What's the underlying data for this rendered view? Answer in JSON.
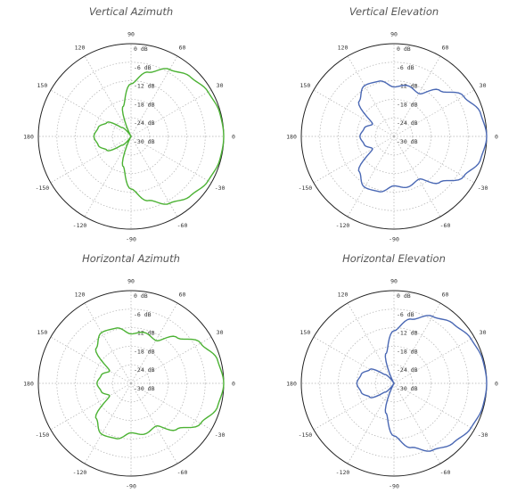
{
  "colors": {
    "green": "#4cb234",
    "blue": "#4a68b4",
    "grid": "#b0b0b0",
    "frame": "#222222"
  },
  "chart_data": [
    {
      "type": "polar",
      "title": "Vertical Azimuth",
      "color": "#4cb234",
      "angle_labels": [
        "90",
        "60",
        "30",
        "0",
        "-30",
        "-60",
        "-90",
        "-120",
        "-150",
        "180",
        "150",
        "120"
      ],
      "radial_labels": [
        "0 dB",
        "-6 dB",
        "-12 dB",
        "-18 dB",
        "-24 dB",
        "-30 dB"
      ],
      "r_range_db": [
        -30,
        0
      ],
      "grid": true,
      "pattern": {
        "angle_deg": [
          0,
          15,
          30,
          45,
          60,
          75,
          90,
          105,
          120,
          135,
          150,
          165,
          180,
          195,
          210,
          225,
          240,
          255,
          270,
          285,
          300,
          315,
          330,
          345
        ],
        "gain_db": [
          0,
          -0.3,
          -1.2,
          -2.8,
          -5,
          -8.5,
          -13,
          -20,
          -30,
          -26,
          -21,
          -19,
          -18,
          -19,
          -21,
          -26,
          -30,
          -20,
          -13,
          -8.5,
          -5,
          -2.8,
          -1.2,
          -0.3
        ]
      }
    },
    {
      "type": "polar",
      "title": "Vertical Elevation",
      "color": "#4a68b4",
      "angle_labels": [
        "90",
        "60",
        "30",
        "0",
        "-30",
        "-60",
        "-90",
        "-120",
        "-150",
        "180",
        "150",
        "120"
      ],
      "radial_labels": [
        "0 dB",
        "-6 dB",
        "-12 dB",
        "-18 dB",
        "-24 dB",
        "-30 dB"
      ],
      "r_range_db": [
        -30,
        0
      ],
      "grid": true,
      "pattern": {
        "angle_deg": [
          0,
          15,
          30,
          45,
          60,
          75,
          90,
          105,
          120,
          135,
          150,
          165,
          180,
          195,
          210,
          225,
          240,
          255,
          270,
          285,
          300,
          315,
          330,
          345
        ],
        "gain_db": [
          0,
          -1,
          -4,
          -9,
          -14,
          -13,
          -14,
          -11.5,
          -11,
          -14,
          -22,
          -20,
          -19,
          -20,
          -22,
          -14,
          -11,
          -11.5,
          -14,
          -13,
          -14,
          -9,
          -4,
          -1
        ]
      }
    },
    {
      "type": "polar",
      "title": "Horizontal Azimuth",
      "color": "#4cb234",
      "angle_labels": [
        "90",
        "60",
        "30",
        "0",
        "-30",
        "-60",
        "-90",
        "-120",
        "-150",
        "180",
        "150",
        "120"
      ],
      "radial_labels": [
        "0 dB",
        "-6 dB",
        "-12 dB",
        "-18 dB",
        "-24 dB",
        "-30 dB"
      ],
      "r_range_db": [
        -30,
        0
      ],
      "grid": true,
      "pattern": {
        "angle_deg": [
          0,
          15,
          30,
          45,
          60,
          75,
          90,
          105,
          120,
          135,
          150,
          165,
          180,
          195,
          210,
          225,
          240,
          255,
          270,
          285,
          300,
          315,
          330,
          345
        ],
        "gain_db": [
          0,
          -1,
          -4,
          -9,
          -14,
          -13,
          -14,
          -11.5,
          -11,
          -14,
          -22,
          -20,
          -19,
          -20,
          -22,
          -14,
          -11,
          -11.5,
          -14,
          -13,
          -14,
          -9,
          -4,
          -1
        ]
      }
    },
    {
      "type": "polar",
      "title": "Horizontal Elevation",
      "color": "#4a68b4",
      "angle_labels": [
        "90",
        "60",
        "30",
        "0",
        "-30",
        "-60",
        "-90",
        "-120",
        "-150",
        "180",
        "150",
        "120"
      ],
      "radial_labels": [
        "0 dB",
        "-6 dB",
        "-12 dB",
        "-18 dB",
        "-24 dB",
        "-30 dB"
      ],
      "r_range_db": [
        -30,
        0
      ],
      "grid": true,
      "pattern": {
        "angle_deg": [
          0,
          15,
          30,
          45,
          60,
          75,
          90,
          105,
          120,
          135,
          150,
          165,
          180,
          195,
          210,
          225,
          240,
          255,
          270,
          285,
          300,
          315,
          330,
          345
        ],
        "gain_db": [
          0,
          -0.3,
          -1.2,
          -2.8,
          -5,
          -8.5,
          -13,
          -20,
          -30,
          -26,
          -21,
          -19,
          -18,
          -19,
          -21,
          -26,
          -30,
          -20,
          -13,
          -8.5,
          -5,
          -2.8,
          -1.2,
          -0.3
        ]
      }
    }
  ]
}
